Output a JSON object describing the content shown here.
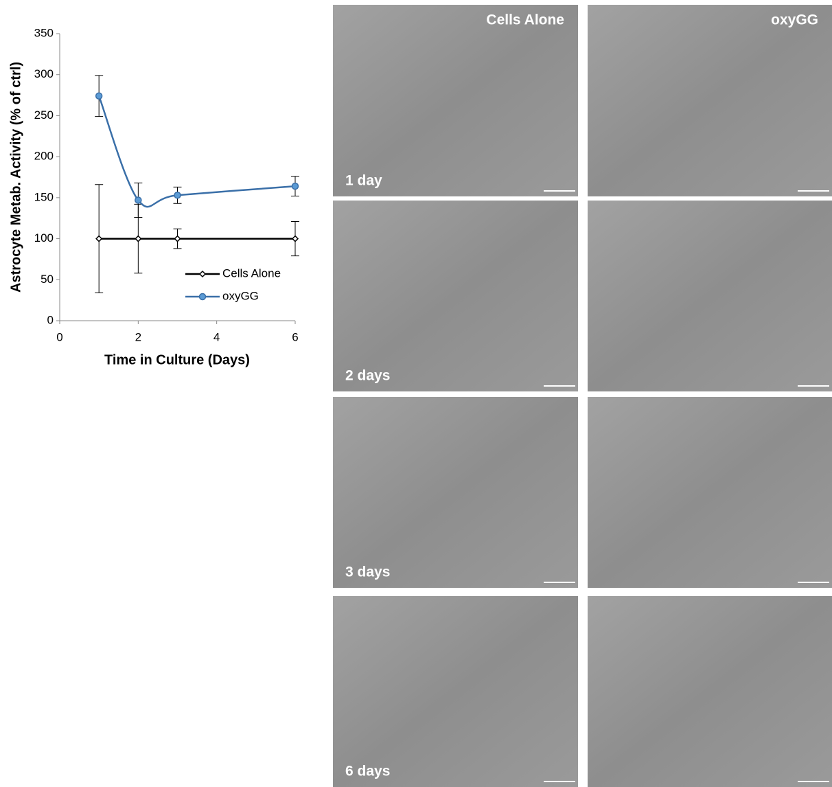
{
  "chart_data": {
    "type": "line",
    "x_label": "Time in Culture (Days)",
    "y_label": "Astrocyte Metab. Activity (% of ctrl)",
    "x": [
      1,
      2,
      3,
      6
    ],
    "xlim": [
      0,
      6
    ],
    "xticks": [
      0,
      2,
      4,
      6
    ],
    "ylim": [
      0,
      350
    ],
    "yticks": [
      0,
      50,
      100,
      150,
      200,
      250,
      300,
      350
    ],
    "legend": "lower right",
    "smooth": true,
    "series": [
      {
        "name": "Cells Alone",
        "color": "#000000",
        "marker_fill": "#ffffff",
        "values": [
          100,
          100,
          100,
          100
        ],
        "errors": [
          66,
          42,
          12,
          21
        ]
      },
      {
        "name": "oxyGG",
        "color": "#3a6fa8",
        "marker_fill": "#5b9bd5",
        "values": [
          274,
          147,
          153,
          164
        ],
        "errors": [
          25,
          21,
          10,
          12
        ]
      }
    ]
  },
  "panels": {
    "columns": [
      "Cells Alone",
      "oxyGG"
    ],
    "rows": [
      "1 day",
      "2 days",
      "3 days",
      "6 days"
    ]
  }
}
